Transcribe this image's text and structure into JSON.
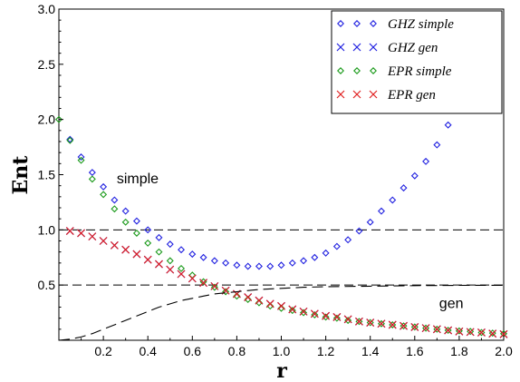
{
  "chart_data": {
    "type": "scatter",
    "xlabel": "r",
    "ylabel": "Ent",
    "xlim": [
      0.0,
      2.0
    ],
    "ylim": [
      0.0,
      3.0
    ],
    "x_ticks": [
      "0.2",
      "0.4",
      "0.6",
      "0.8",
      "1.0",
      "1.2",
      "1.4",
      "1.6",
      "1.8",
      "2.0"
    ],
    "y_ticks": [
      "0.5",
      "1.0",
      "1.5",
      "2.0",
      "2.5",
      "3.0"
    ],
    "legend_position": "top-right",
    "annotations": [
      {
        "text": "simple",
        "x": 0.26,
        "y": 1.42
      },
      {
        "text": "gen",
        "x": 1.71,
        "y": 0.29
      }
    ],
    "reference_lines": [
      {
        "type": "horizontal",
        "y": 1.0,
        "style": "dashed"
      },
      {
        "type": "horizontal",
        "y": 0.5,
        "style": "dashed"
      }
    ],
    "series": [
      {
        "name": "GHZ simple",
        "marker": "diamond",
        "color": "#2020e0",
        "points": [
          [
            0.05,
            1.82
          ],
          [
            0.1,
            1.66
          ],
          [
            0.15,
            1.52
          ],
          [
            0.2,
            1.39
          ],
          [
            0.25,
            1.27
          ],
          [
            0.3,
            1.17
          ],
          [
            0.35,
            1.08
          ],
          [
            0.4,
            1.0
          ],
          [
            0.45,
            0.93
          ],
          [
            0.5,
            0.87
          ],
          [
            0.55,
            0.82
          ],
          [
            0.6,
            0.78
          ],
          [
            0.65,
            0.75
          ],
          [
            0.7,
            0.72
          ],
          [
            0.75,
            0.7
          ],
          [
            0.8,
            0.68
          ],
          [
            0.85,
            0.67
          ],
          [
            0.9,
            0.67
          ],
          [
            0.95,
            0.67
          ],
          [
            1.0,
            0.68
          ],
          [
            1.05,
            0.7
          ],
          [
            1.1,
            0.72
          ],
          [
            1.15,
            0.75
          ],
          [
            1.2,
            0.79
          ],
          [
            1.25,
            0.85
          ],
          [
            1.3,
            0.91
          ],
          [
            1.35,
            0.99
          ],
          [
            1.4,
            1.07
          ],
          [
            1.45,
            1.17
          ],
          [
            1.5,
            1.27
          ],
          [
            1.55,
            1.38
          ],
          [
            1.6,
            1.49
          ],
          [
            1.65,
            1.62
          ],
          [
            1.7,
            1.77
          ],
          [
            1.75,
            1.95
          ]
        ]
      },
      {
        "name": "GHZ gen",
        "marker": "x",
        "color": "#2020e0",
        "points": [
          [
            0.05,
            0.99
          ],
          [
            0.1,
            0.97
          ],
          [
            0.15,
            0.94
          ],
          [
            0.2,
            0.9
          ],
          [
            0.25,
            0.86
          ],
          [
            0.3,
            0.82
          ],
          [
            0.35,
            0.78
          ],
          [
            0.4,
            0.73
          ],
          [
            0.45,
            0.69
          ],
          [
            0.5,
            0.64
          ],
          [
            0.55,
            0.6
          ],
          [
            0.6,
            0.56
          ],
          [
            0.65,
            0.52
          ],
          [
            0.7,
            0.49
          ],
          [
            0.75,
            0.45
          ],
          [
            0.8,
            0.42
          ],
          [
            0.85,
            0.39
          ],
          [
            0.9,
            0.36
          ],
          [
            0.95,
            0.33
          ],
          [
            1.0,
            0.31
          ],
          [
            1.05,
            0.28
          ],
          [
            1.1,
            0.26
          ],
          [
            1.15,
            0.24
          ],
          [
            1.2,
            0.22
          ],
          [
            1.25,
            0.21
          ],
          [
            1.3,
            0.19
          ],
          [
            1.35,
            0.17
          ],
          [
            1.4,
            0.16
          ],
          [
            1.45,
            0.15
          ],
          [
            1.5,
            0.14
          ],
          [
            1.55,
            0.13
          ],
          [
            1.6,
            0.12
          ],
          [
            1.65,
            0.11
          ],
          [
            1.7,
            0.1
          ],
          [
            1.75,
            0.09
          ],
          [
            1.8,
            0.08
          ],
          [
            1.85,
            0.075
          ],
          [
            1.9,
            0.07
          ],
          [
            1.95,
            0.06
          ],
          [
            2.0,
            0.055
          ]
        ]
      },
      {
        "name": "EPR simple",
        "marker": "diamond",
        "color": "#1a9a1a",
        "points": [
          [
            0.0,
            2.0
          ],
          [
            0.05,
            1.81
          ],
          [
            0.1,
            1.63
          ],
          [
            0.15,
            1.46
          ],
          [
            0.2,
            1.32
          ],
          [
            0.25,
            1.19
          ],
          [
            0.3,
            1.07
          ],
          [
            0.35,
            0.97
          ],
          [
            0.4,
            0.88
          ],
          [
            0.45,
            0.8
          ],
          [
            0.5,
            0.72
          ],
          [
            0.55,
            0.65
          ],
          [
            0.6,
            0.59
          ],
          [
            0.65,
            0.53
          ],
          [
            0.7,
            0.48
          ],
          [
            0.75,
            0.44
          ],
          [
            0.8,
            0.4
          ],
          [
            0.85,
            0.37
          ],
          [
            0.9,
            0.34
          ],
          [
            0.95,
            0.31
          ],
          [
            1.0,
            0.29
          ],
          [
            1.05,
            0.27
          ],
          [
            1.1,
            0.25
          ],
          [
            1.15,
            0.23
          ],
          [
            1.2,
            0.21
          ],
          [
            1.25,
            0.2
          ],
          [
            1.3,
            0.18
          ],
          [
            1.35,
            0.17
          ],
          [
            1.4,
            0.16
          ],
          [
            1.45,
            0.15
          ],
          [
            1.5,
            0.14
          ],
          [
            1.55,
            0.13
          ],
          [
            1.6,
            0.12
          ],
          [
            1.65,
            0.11
          ],
          [
            1.7,
            0.1
          ],
          [
            1.75,
            0.09
          ],
          [
            1.8,
            0.085
          ],
          [
            1.85,
            0.08
          ],
          [
            1.9,
            0.07
          ],
          [
            1.95,
            0.065
          ],
          [
            2.0,
            0.06
          ]
        ]
      },
      {
        "name": "EPR gen",
        "marker": "x",
        "color": "#e02020",
        "points": [
          [
            0.05,
            0.99
          ],
          [
            0.1,
            0.97
          ],
          [
            0.15,
            0.94
          ],
          [
            0.2,
            0.9
          ],
          [
            0.25,
            0.86
          ],
          [
            0.3,
            0.82
          ],
          [
            0.35,
            0.78
          ],
          [
            0.4,
            0.73
          ],
          [
            0.45,
            0.69
          ],
          [
            0.5,
            0.64
          ],
          [
            0.55,
            0.6
          ],
          [
            0.6,
            0.56
          ],
          [
            0.65,
            0.52
          ],
          [
            0.7,
            0.49
          ],
          [
            0.75,
            0.45
          ],
          [
            0.8,
            0.42
          ],
          [
            0.85,
            0.39
          ],
          [
            0.9,
            0.36
          ],
          [
            0.95,
            0.33
          ],
          [
            1.0,
            0.31
          ],
          [
            1.05,
            0.28
          ],
          [
            1.1,
            0.26
          ],
          [
            1.15,
            0.24
          ],
          [
            1.2,
            0.22
          ],
          [
            1.25,
            0.21
          ],
          [
            1.3,
            0.19
          ],
          [
            1.35,
            0.17
          ],
          [
            1.4,
            0.16
          ],
          [
            1.45,
            0.15
          ],
          [
            1.5,
            0.14
          ],
          [
            1.55,
            0.13
          ],
          [
            1.6,
            0.12
          ],
          [
            1.65,
            0.11
          ],
          [
            1.7,
            0.1
          ],
          [
            1.75,
            0.09
          ],
          [
            1.8,
            0.08
          ],
          [
            1.85,
            0.075
          ],
          [
            1.9,
            0.07
          ],
          [
            1.95,
            0.06
          ],
          [
            2.0,
            0.055
          ]
        ]
      },
      {
        "name": "",
        "marker": "line",
        "style": "long-dashed",
        "color": "#000000",
        "points": [
          [
            0.0,
            0.0
          ],
          [
            0.05,
            0.01
          ],
          [
            0.1,
            0.03
          ],
          [
            0.15,
            0.06
          ],
          [
            0.2,
            0.1
          ],
          [
            0.25,
            0.14
          ],
          [
            0.3,
            0.18
          ],
          [
            0.35,
            0.22
          ],
          [
            0.4,
            0.26
          ],
          [
            0.45,
            0.3
          ],
          [
            0.5,
            0.33
          ],
          [
            0.55,
            0.36
          ],
          [
            0.6,
            0.38
          ],
          [
            0.65,
            0.4
          ],
          [
            0.7,
            0.42
          ],
          [
            0.75,
            0.43
          ],
          [
            0.8,
            0.44
          ],
          [
            0.9,
            0.46
          ],
          [
            1.0,
            0.47
          ],
          [
            1.1,
            0.48
          ],
          [
            1.2,
            0.485
          ],
          [
            1.4,
            0.49
          ],
          [
            1.6,
            0.495
          ],
          [
            1.8,
            0.497
          ],
          [
            2.0,
            0.498
          ]
        ]
      }
    ]
  }
}
